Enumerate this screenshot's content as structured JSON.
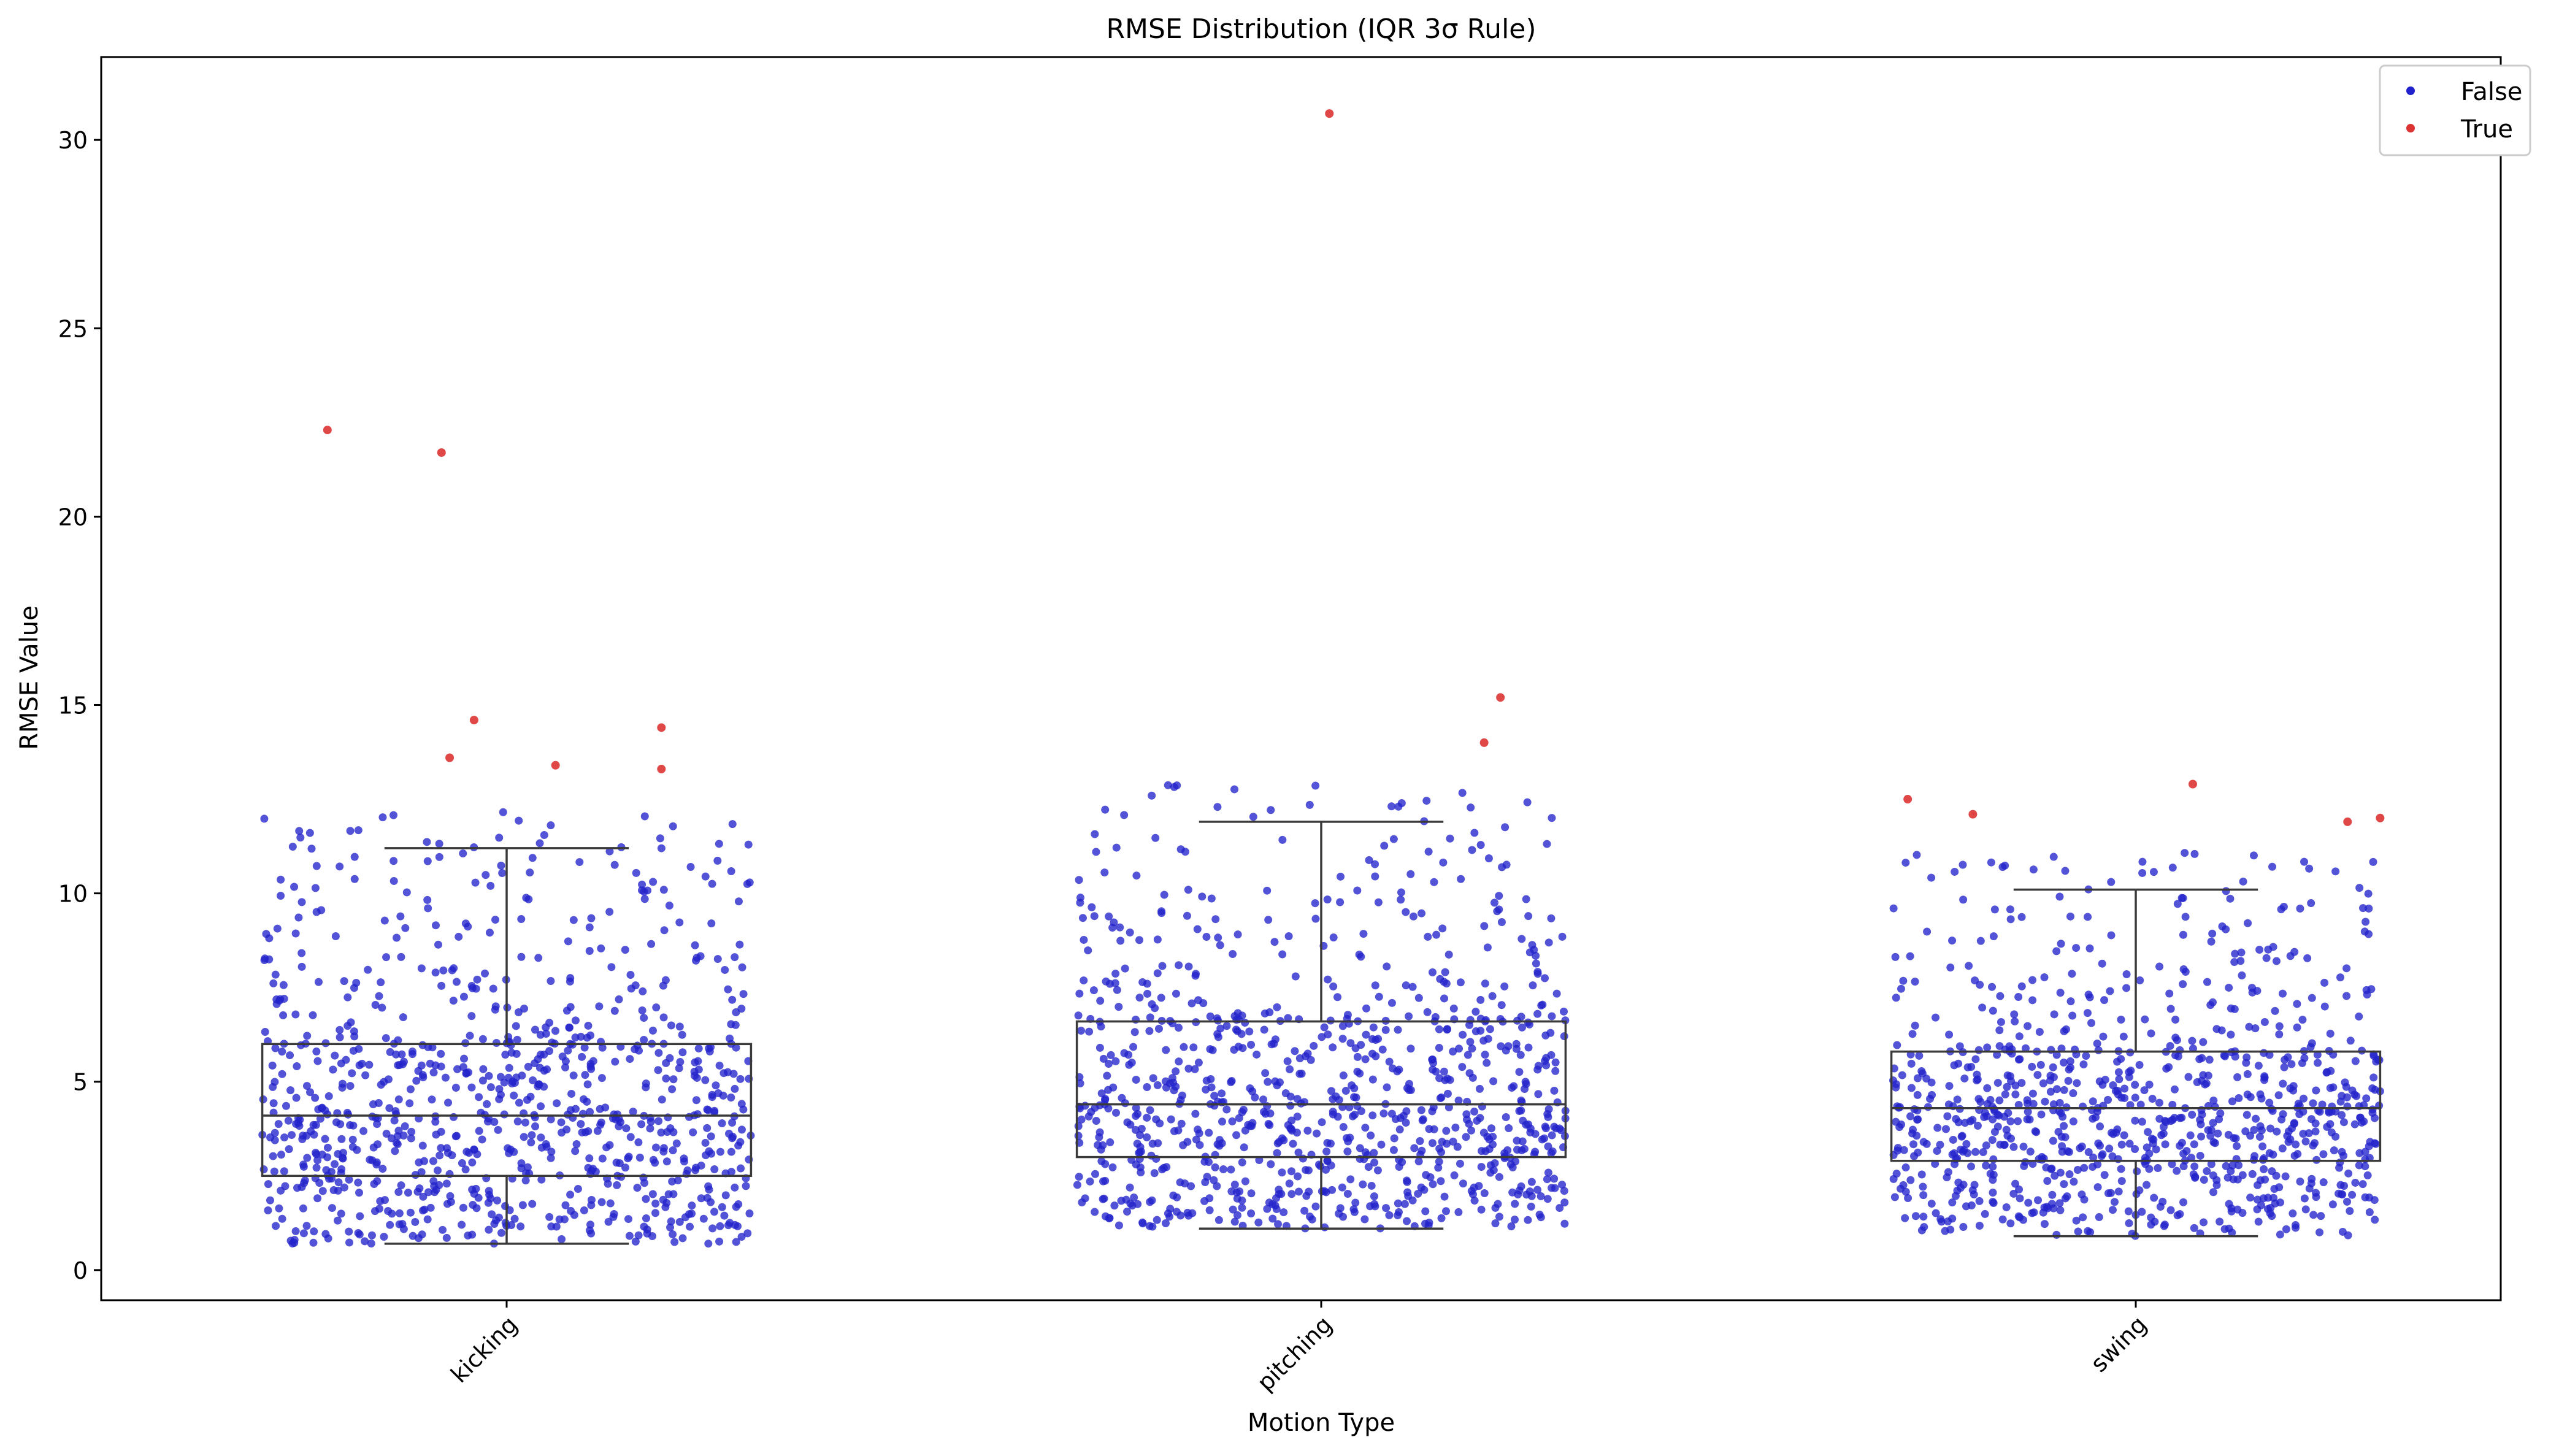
{
  "chart_data": {
    "type": "box",
    "title": "RMSE Distribution (IQR 3σ Rule)",
    "xlabel": "Motion Type",
    "ylabel": "RMSE Value",
    "categories": [
      "kicking",
      "pitching",
      "swing"
    ],
    "ylim": [
      -0.8,
      32.2
    ],
    "yticks": [
      0,
      5,
      10,
      15,
      20,
      25,
      30
    ],
    "ytick_labels": [
      "0",
      "5",
      "10",
      "15",
      "20",
      "25",
      "30"
    ],
    "grid": false,
    "legend": {
      "position": "top-right",
      "entries": [
        {
          "label": "False",
          "color": "#2222cc"
        },
        {
          "label": "True",
          "color": "#dd3333"
        }
      ]
    },
    "boxes": [
      {
        "category": "kicking",
        "whisker_low": 0.7,
        "q1": 2.5,
        "median": 4.1,
        "q3": 6.0,
        "whisker_high": 11.2
      },
      {
        "category": "pitching",
        "whisker_low": 1.1,
        "q1": 3.0,
        "median": 4.4,
        "q3": 6.6,
        "whisker_high": 11.9
      },
      {
        "category": "swing",
        "whisker_low": 0.9,
        "q1": 2.9,
        "median": 4.3,
        "q3": 5.8,
        "whisker_high": 10.1
      }
    ],
    "series": [
      {
        "name": "True",
        "color": "#dd3333",
        "points": [
          {
            "category": "kicking",
            "offset": -0.22,
            "y": 22.3
          },
          {
            "category": "kicking",
            "offset": -0.08,
            "y": 21.7
          },
          {
            "category": "kicking",
            "offset": -0.04,
            "y": 14.6
          },
          {
            "category": "kicking",
            "offset": -0.07,
            "y": 13.6
          },
          {
            "category": "kicking",
            "offset": 0.06,
            "y": 13.4
          },
          {
            "category": "kicking",
            "offset": 0.19,
            "y": 14.4
          },
          {
            "category": "kicking",
            "offset": 0.19,
            "y": 13.3
          },
          {
            "category": "pitching",
            "offset": 0.01,
            "y": 30.7
          },
          {
            "category": "pitching",
            "offset": 0.22,
            "y": 15.2
          },
          {
            "category": "pitching",
            "offset": 0.2,
            "y": 14.0
          },
          {
            "category": "swing",
            "offset": -0.28,
            "y": 12.5
          },
          {
            "category": "swing",
            "offset": -0.2,
            "y": 12.1
          },
          {
            "category": "swing",
            "offset": 0.07,
            "y": 12.9
          },
          {
            "category": "swing",
            "offset": 0.26,
            "y": 11.9
          },
          {
            "category": "swing",
            "offset": 0.3,
            "y": 12.0
          }
        ]
      },
      {
        "name": "False",
        "color": "#2222cc",
        "note": "dense jittered cloud of non-outlier points within whiskers for each category",
        "per_category_count": 900,
        "jitter_width": 0.3
      }
    ]
  }
}
